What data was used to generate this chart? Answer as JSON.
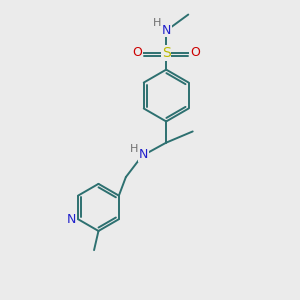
{
  "background_color": "#ebebeb",
  "bond_color": "#2d7070",
  "N_color": "#2020cc",
  "O_color": "#cc0000",
  "S_color": "#bbbb00",
  "H_color": "#707070",
  "figsize": [
    3.0,
    3.0
  ],
  "dpi": 100,
  "xlim": [
    0,
    10
  ],
  "ylim": [
    0,
    10
  ]
}
